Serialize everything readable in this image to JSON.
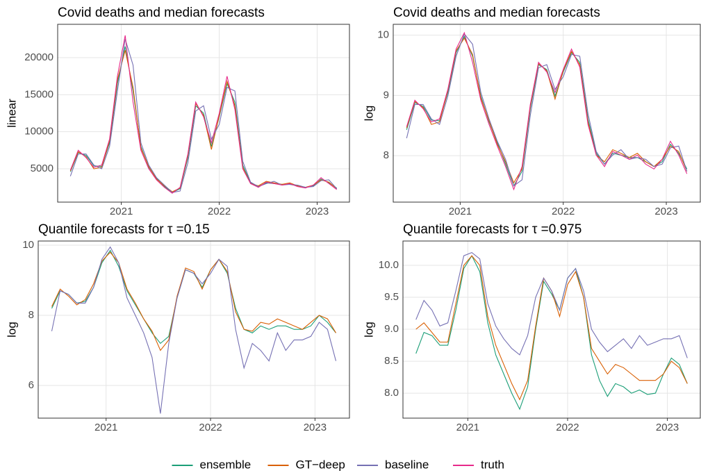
{
  "chart_data": [
    {
      "type": "line",
      "title": "Covid deaths and median forecasts",
      "y_label": "linear",
      "x": [
        2020.48,
        2020.56,
        2020.64,
        2020.72,
        2020.8,
        2020.88,
        2020.96,
        2021.04,
        2021.12,
        2021.2,
        2021.28,
        2021.36,
        2021.44,
        2021.52,
        2021.6,
        2021.68,
        2021.76,
        2021.84,
        2021.92,
        2022,
        2022.08,
        2022.16,
        2022.24,
        2022.32,
        2022.4,
        2022.48,
        2022.56,
        2022.64,
        2022.72,
        2022.8,
        2022.88,
        2022.96,
        2023.04,
        2023.12,
        2023.2
      ],
      "xlim": [
        2020.35,
        2023.33
      ],
      "xticks": [
        2021,
        2022,
        2023
      ],
      "ylim": [
        500,
        24500
      ],
      "yticks": [
        5000,
        10000,
        15000,
        20000
      ],
      "grid": true,
      "series": [
        {
          "name": "ensemble",
          "color": "#1b9e77",
          "values": [
            4600,
            7200,
            6800,
            5400,
            5300,
            8500,
            16500,
            21500,
            15500,
            8000,
            5200,
            3700,
            2600,
            1800,
            2300,
            6500,
            13500,
            12500,
            8000,
            12000,
            16500,
            14000,
            5500,
            3100,
            2600,
            3100,
            3000,
            2900,
            2900,
            2700,
            2500,
            2700,
            3600,
            3100,
            2400
          ]
        },
        {
          "name": "GT−deep",
          "color": "#d95f02",
          "values": [
            4700,
            7300,
            6600,
            5000,
            5200,
            8800,
            17000,
            21000,
            16000,
            7800,
            5300,
            3600,
            2700,
            1900,
            2400,
            6800,
            13800,
            12200,
            7600,
            12200,
            16800,
            13500,
            5200,
            3000,
            2700,
            3300,
            3100,
            2900,
            3100,
            2700,
            2500,
            2800,
            3500,
            3200,
            2300
          ]
        },
        {
          "name": "baseline",
          "color": "#7570b3",
          "values": [
            4000,
            7000,
            7000,
            5500,
            5000,
            8000,
            15500,
            22500,
            19000,
            8500,
            5500,
            3800,
            2800,
            1800,
            2000,
            5800,
            12800,
            13500,
            9000,
            11000,
            16000,
            15500,
            6000,
            3200,
            2600,
            3000,
            3300,
            2800,
            2900,
            2800,
            2500,
            2600,
            3400,
            3500,
            2300
          ]
        },
        {
          "name": "truth",
          "color": "#e7298a",
          "values": [
            4800,
            7500,
            6500,
            5200,
            5500,
            9000,
            17500,
            23000,
            14000,
            7500,
            5000,
            3500,
            2500,
            1700,
            2500,
            7000,
            14000,
            12000,
            8500,
            12500,
            17500,
            13000,
            5000,
            3000,
            2500,
            3200,
            3000,
            2800,
            3000,
            2600,
            2400,
            2800,
            3800,
            3000,
            2200
          ]
        }
      ]
    },
    {
      "type": "line",
      "title": "Covid deaths and median forecasts",
      "y_label": "log",
      "x": [
        2020.48,
        2020.56,
        2020.64,
        2020.72,
        2020.8,
        2020.88,
        2020.96,
        2021.04,
        2021.12,
        2021.2,
        2021.28,
        2021.36,
        2021.44,
        2021.52,
        2021.6,
        2021.68,
        2021.76,
        2021.84,
        2021.92,
        2022,
        2022.08,
        2022.16,
        2022.24,
        2022.32,
        2022.4,
        2022.48,
        2022.56,
        2022.64,
        2022.72,
        2022.8,
        2022.88,
        2022.96,
        2023.04,
        2023.12,
        2023.2
      ],
      "xlim": [
        2020.35,
        2023.33
      ],
      "xticks": [
        2021,
        2022,
        2023
      ],
      "ylim": [
        7.23,
        10.18
      ],
      "yticks": [
        8,
        9,
        10
      ],
      "grid": true,
      "series": [
        {
          "name": "ensemble",
          "color": "#1b9e77",
          "values": [
            8.43,
            8.88,
            8.82,
            8.59,
            8.58,
            9.05,
            9.71,
            9.98,
            9.65,
            8.99,
            8.56,
            8.22,
            7.86,
            7.5,
            7.74,
            8.78,
            9.51,
            9.43,
            8.99,
            9.39,
            9.71,
            9.55,
            8.61,
            8.04,
            7.86,
            8.04,
            8.01,
            7.97,
            7.97,
            7.9,
            7.82,
            7.9,
            8.19,
            8.04,
            7.78
          ]
        },
        {
          "name": "GT−deep",
          "color": "#d95f02",
          "values": [
            8.46,
            8.9,
            8.8,
            8.52,
            8.56,
            9.08,
            9.74,
            9.95,
            9.68,
            8.96,
            8.58,
            8.19,
            7.9,
            7.55,
            7.78,
            8.82,
            9.53,
            9.41,
            8.94,
            9.41,
            9.73,
            9.51,
            8.56,
            8.01,
            7.9,
            8.1,
            8.04,
            7.97,
            8.04,
            7.9,
            7.82,
            7.94,
            8.16,
            8.07,
            7.74
          ]
        },
        {
          "name": "baseline",
          "color": "#7570b3",
          "values": [
            8.29,
            8.85,
            8.85,
            8.61,
            8.52,
            8.99,
            9.65,
            10.02,
            9.85,
            9.05,
            8.61,
            8.24,
            7.94,
            7.5,
            7.6,
            8.67,
            9.46,
            9.51,
            9.1,
            9.31,
            9.68,
            9.65,
            8.7,
            8.07,
            7.86,
            8.01,
            8.1,
            7.94,
            7.97,
            7.94,
            7.82,
            7.86,
            8.13,
            8.16,
            7.74
          ]
        },
        {
          "name": "truth",
          "color": "#e7298a",
          "values": [
            8.48,
            8.92,
            8.78,
            8.56,
            8.61,
            9.1,
            9.77,
            10.04,
            9.55,
            8.92,
            8.52,
            8.16,
            7.82,
            7.44,
            7.82,
            8.85,
            9.55,
            9.39,
            9.05,
            9.43,
            9.77,
            9.47,
            8.52,
            8.01,
            7.82,
            8.07,
            8.01,
            7.94,
            8.01,
            7.86,
            7.78,
            7.94,
            8.24,
            8.01,
            7.7
          ]
        }
      ]
    },
    {
      "type": "line",
      "title": "Quantile forecasts for  τ =0.15",
      "y_label": "log",
      "x": [
        2020.48,
        2020.56,
        2020.64,
        2020.72,
        2020.8,
        2020.88,
        2020.96,
        2021.04,
        2021.12,
        2021.2,
        2021.28,
        2021.36,
        2021.44,
        2021.52,
        2021.6,
        2021.68,
        2021.76,
        2021.84,
        2021.92,
        2022,
        2022.08,
        2022.16,
        2022.24,
        2022.32,
        2022.4,
        2022.48,
        2022.56,
        2022.64,
        2022.72,
        2022.8,
        2022.88,
        2022.96,
        2023.04,
        2023.12,
        2023.2
      ],
      "xlim": [
        2020.35,
        2023.33
      ],
      "xticks": [
        2021,
        2022,
        2023
      ],
      "ylim": [
        5.07,
        10.12
      ],
      "yticks": [
        6,
        8,
        10
      ],
      "grid": true,
      "series": [
        {
          "name": "ensemble",
          "color": "#1b9e77",
          "values": [
            8.2,
            8.7,
            8.6,
            8.35,
            8.4,
            8.8,
            9.5,
            9.85,
            9.4,
            8.7,
            8.3,
            7.9,
            7.5,
            7.2,
            7.4,
            8.5,
            9.3,
            9.2,
            8.8,
            9.3,
            9.6,
            9.2,
            8.2,
            7.6,
            7.5,
            7.7,
            7.6,
            7.7,
            7.7,
            7.6,
            7.6,
            7.7,
            8.0,
            7.8,
            7.5
          ]
        },
        {
          "name": "GT−deep",
          "color": "#d95f02",
          "values": [
            8.25,
            8.75,
            8.55,
            8.3,
            8.45,
            8.9,
            9.55,
            9.8,
            9.5,
            8.75,
            8.35,
            7.9,
            7.55,
            7.0,
            7.3,
            8.55,
            9.35,
            9.25,
            8.75,
            9.3,
            9.6,
            9.25,
            8.1,
            7.6,
            7.55,
            7.8,
            7.75,
            7.9,
            7.8,
            7.7,
            7.6,
            7.8,
            8.0,
            7.9,
            7.5
          ]
        },
        {
          "name": "baseline",
          "color": "#7570b3",
          "values": [
            7.55,
            8.7,
            8.6,
            8.35,
            8.35,
            8.8,
            9.6,
            9.95,
            9.5,
            8.5,
            8.0,
            7.5,
            6.8,
            5.2,
            7.2,
            8.5,
            9.3,
            9.2,
            8.9,
            9.2,
            9.6,
            9.4,
            7.6,
            6.5,
            7.2,
            7.0,
            6.7,
            7.5,
            7.0,
            7.3,
            7.3,
            7.4,
            7.8,
            7.6,
            6.7
          ]
        }
      ]
    },
    {
      "type": "line",
      "title": "Quantile forecasts for  τ =0.975",
      "y_label": "log",
      "x": [
        2020.48,
        2020.56,
        2020.64,
        2020.72,
        2020.8,
        2020.88,
        2020.96,
        2021.04,
        2021.12,
        2021.2,
        2021.28,
        2021.36,
        2021.44,
        2021.52,
        2021.6,
        2021.68,
        2021.76,
        2021.84,
        2021.92,
        2022,
        2022.08,
        2022.16,
        2022.24,
        2022.32,
        2022.4,
        2022.48,
        2022.56,
        2022.64,
        2022.72,
        2022.8,
        2022.88,
        2022.96,
        2023.04,
        2023.12,
        2023.2
      ],
      "xlim": [
        2020.35,
        2023.33
      ],
      "xticks": [
        2021,
        2022,
        2023
      ],
      "ylim": [
        7.61,
        10.38
      ],
      "yticks": [
        {
          "value": 8,
          "label": "8.0"
        },
        {
          "value": 8.5,
          "label": "8.5"
        },
        {
          "value": 9,
          "label": "9.0"
        },
        {
          "value": 9.5,
          "label": "9.5"
        },
        {
          "value": 10,
          "label": "10.0"
        }
      ],
      "grid": true,
      "series": [
        {
          "name": "ensemble",
          "color": "#1b9e77",
          "values": [
            8.62,
            8.95,
            8.9,
            8.75,
            8.75,
            9.3,
            9.95,
            10.15,
            9.9,
            9.1,
            8.6,
            8.3,
            8.0,
            7.75,
            8.1,
            9.0,
            9.75,
            9.55,
            9.3,
            9.8,
            9.95,
            9.5,
            8.6,
            8.2,
            7.95,
            8.15,
            8.1,
            8.0,
            8.05,
            7.98,
            8.0,
            8.3,
            8.55,
            8.45,
            8.15
          ]
        },
        {
          "name": "GT−deep",
          "color": "#d95f02",
          "values": [
            9.0,
            9.1,
            8.95,
            8.8,
            8.8,
            9.4,
            10.0,
            10.15,
            10.0,
            9.2,
            8.75,
            8.45,
            8.15,
            7.9,
            8.2,
            9.05,
            9.8,
            9.6,
            9.2,
            9.7,
            9.9,
            9.5,
            8.7,
            8.5,
            8.3,
            8.45,
            8.4,
            8.3,
            8.2,
            8.2,
            8.2,
            8.3,
            8.5,
            8.4,
            8.15
          ]
        },
        {
          "name": "baseline",
          "color": "#7570b3",
          "values": [
            9.15,
            9.45,
            9.3,
            9.05,
            9.1,
            9.6,
            10.15,
            10.2,
            10.1,
            9.4,
            9.05,
            8.85,
            8.7,
            8.6,
            8.9,
            9.5,
            9.8,
            9.6,
            9.3,
            9.8,
            9.95,
            9.6,
            9.0,
            8.8,
            8.65,
            8.75,
            8.85,
            8.7,
            8.9,
            8.75,
            8.8,
            8.85,
            8.85,
            8.9,
            8.55
          ]
        }
      ]
    }
  ]
}
